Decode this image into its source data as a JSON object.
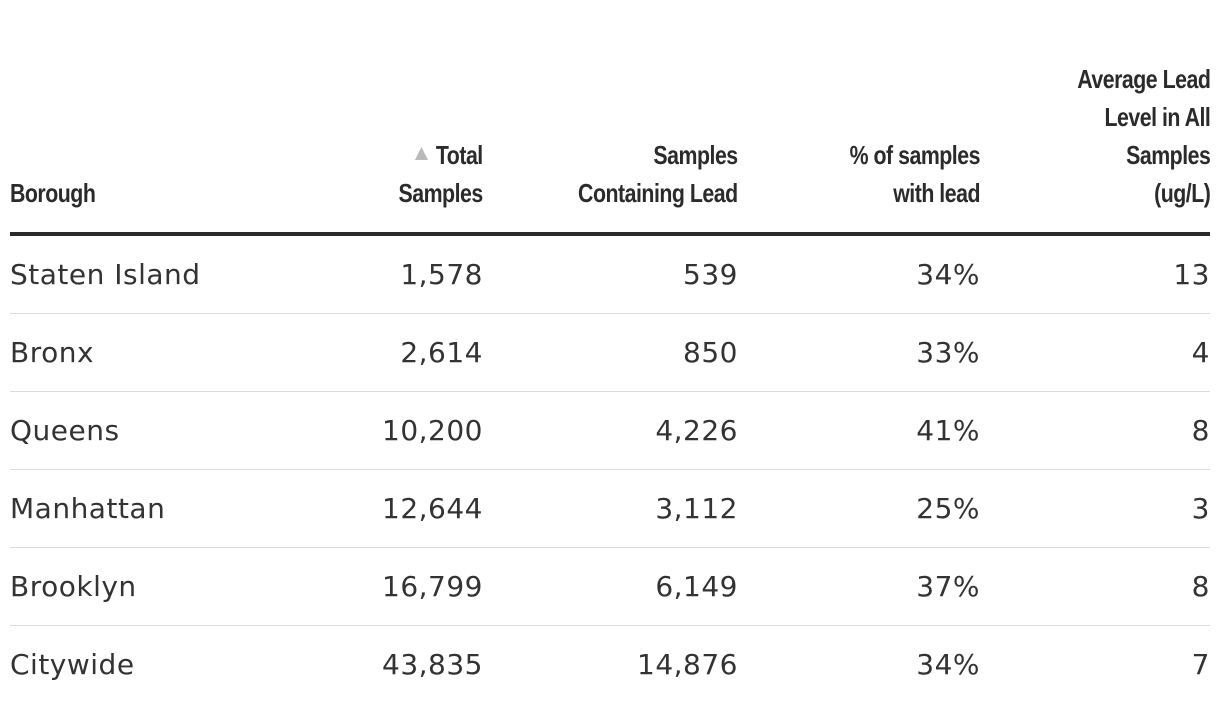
{
  "table": {
    "headers": {
      "borough": "Borough",
      "total_line1": "Total",
      "total_line2": "Samples",
      "lead_line1": "Samples",
      "lead_line2": "Containing Lead",
      "pct_line1": "% of samples",
      "pct_line2": "with lead",
      "avg_line1": "Average Lead",
      "avg_line2": "Level in All",
      "avg_line3": "Samples",
      "avg_line4": "(ug/L)"
    },
    "sort": {
      "column": "Total Samples",
      "direction": "ascending",
      "icon": "sort-ascending-icon"
    },
    "rows": [
      {
        "borough": "Staten Island",
        "total": "1,578",
        "lead": "539",
        "pct": "34%",
        "avg": "13"
      },
      {
        "borough": "Bronx",
        "total": "2,614",
        "lead": "850",
        "pct": "33%",
        "avg": "4"
      },
      {
        "borough": "Queens",
        "total": "10,200",
        "lead": "4,226",
        "pct": "41%",
        "avg": "8"
      },
      {
        "borough": "Manhattan",
        "total": "12,644",
        "lead": "3,112",
        "pct": "25%",
        "avg": "3"
      },
      {
        "borough": "Brooklyn",
        "total": "16,799",
        "lead": "6,149",
        "pct": "37%",
        "avg": "8"
      },
      {
        "borough": "Citywide",
        "total": "43,835",
        "lead": "14,876",
        "pct": "34%",
        "avg": "7"
      }
    ]
  },
  "colors": {
    "text": "#333333",
    "header_text": "#2b2b2b",
    "header_rule": "#2a2a2a",
    "row_rule": "#dcdcdc",
    "sort_arrow": "#b9b9b9",
    "background": "#ffffff"
  }
}
